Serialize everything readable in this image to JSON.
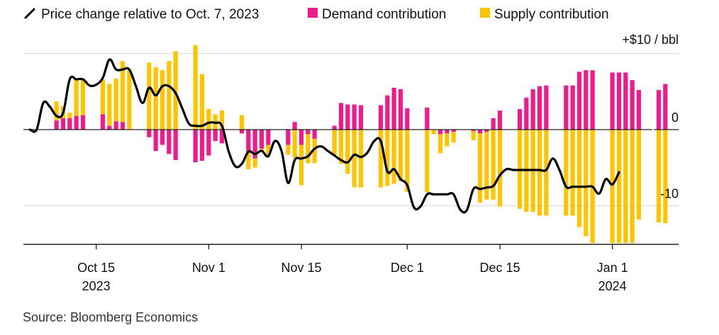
{
  "chart_data": {
    "type": "bar+line",
    "title": "",
    "legend": [
      {
        "key": "line",
        "label": "Price change relative to Oct. 7, 2023",
        "color": "#000000",
        "marker": "line"
      },
      {
        "key": "demand",
        "label": "Demand contribution",
        "color": "#ef1a8c",
        "marker": "square"
      },
      {
        "key": "supply",
        "label": "Supply contribution",
        "color": "#ffc400",
        "marker": "square"
      }
    ],
    "y_unit_label": "+$10 / bbl",
    "y_range": [
      -15,
      10
    ],
    "y_ticks": [
      {
        "value": 10,
        "label": ""
      },
      {
        "value": 0,
        "label": "0"
      },
      {
        "value": -10,
        "label": "-10"
      }
    ],
    "x_ticks": [
      {
        "date": "2023-10-15",
        "label": "Oct 15",
        "sublabel": "2023"
      },
      {
        "date": "2023-11-01",
        "label": "Nov 1",
        "sublabel": ""
      },
      {
        "date": "2023-11-15",
        "label": "Nov 15",
        "sublabel": ""
      },
      {
        "date": "2023-12-01",
        "label": "Dec 1",
        "sublabel": ""
      },
      {
        "date": "2023-12-15",
        "label": "Dec 15",
        "sublabel": ""
      },
      {
        "date": "2024-01-01",
        "label": "Jan 1",
        "sublabel": "2024"
      }
    ],
    "x_range": [
      "2023-10-04",
      "2024-01-11"
    ],
    "source": "Source: Bloomberg Economics",
    "bars": [
      {
        "date": "2023-10-07",
        "demand": 0,
        "supply": 0
      },
      {
        "date": "2023-10-09",
        "demand": 1.2,
        "supply": 2.5
      },
      {
        "date": "2023-10-10",
        "demand": 1.5,
        "supply": 1.6
      },
      {
        "date": "2023-10-11",
        "demand": 1.5,
        "supply": 0.7
      },
      {
        "date": "2023-10-12",
        "demand": 1.8,
        "supply": 4.8
      },
      {
        "date": "2023-10-13",
        "demand": 1.9,
        "supply": 4.8
      },
      {
        "date": "2023-10-16",
        "demand": 2.0,
        "supply": 4.6
      },
      {
        "date": "2023-10-17",
        "demand": 0.5,
        "supply": 5.5
      },
      {
        "date": "2023-10-18",
        "demand": 1.1,
        "supply": 5.6
      },
      {
        "date": "2023-10-19",
        "demand": 1.0,
        "supply": 8.0
      },
      {
        "date": "2023-10-20",
        "demand": 0,
        "supply": 7.8
      },
      {
        "date": "2023-10-23",
        "demand": -1.0,
        "supply": 8.8
      },
      {
        "date": "2023-10-24",
        "demand": -2.8,
        "supply": 8.2
      },
      {
        "date": "2023-10-25",
        "demand": -2.0,
        "supply": 7.8
      },
      {
        "date": "2023-10-26",
        "demand": -3.2,
        "supply": 9.0
      },
      {
        "date": "2023-10-27",
        "demand": -4.0,
        "supply": 10.3
      },
      {
        "date": "2023-10-30",
        "demand": -4.3,
        "supply": 11.1
      },
      {
        "date": "2023-10-31",
        "demand": -4.1,
        "supply": 7.3
      },
      {
        "date": "2023-11-01",
        "demand": -3.4,
        "supply": 2.7
      },
      {
        "date": "2023-11-02",
        "demand": -1.5,
        "supply": 2.0
      },
      {
        "date": "2023-11-03",
        "demand": -1.8,
        "supply": 2.5
      },
      {
        "date": "2023-11-06",
        "demand": -0.5,
        "supply": 1.9
      },
      {
        "date": "2023-11-07",
        "demand": -3.0,
        "supply": -2.2
      },
      {
        "date": "2023-11-08",
        "demand": -3.8,
        "supply": -1.2
      },
      {
        "date": "2023-11-09",
        "demand": -2.5,
        "supply": -0.4
      },
      {
        "date": "2023-11-10",
        "demand": -2.0,
        "supply": -1.6
      },
      {
        "date": "2023-11-13",
        "demand": -2.0,
        "supply": -1.3
      },
      {
        "date": "2023-11-14",
        "demand": 1.0,
        "supply": -3.7
      },
      {
        "date": "2023-11-15",
        "demand": -2.0,
        "supply": -5.3
      },
      {
        "date": "2023-11-16",
        "demand": -0.6,
        "supply": -3.8
      },
      {
        "date": "2023-11-17",
        "demand": -1.2,
        "supply": -3.2
      },
      {
        "date": "2023-11-20",
        "demand": 0.5,
        "supply": -3.3
      },
      {
        "date": "2023-11-21",
        "demand": 3.5,
        "supply": -4.5
      },
      {
        "date": "2023-11-22",
        "demand": 3.3,
        "supply": -5.8
      },
      {
        "date": "2023-11-23",
        "demand": 3.3,
        "supply": -7.6
      },
      {
        "date": "2023-11-24",
        "demand": 3.2,
        "supply": -7.6
      },
      {
        "date": "2023-11-27",
        "demand": 3.2,
        "supply": -7.6
      },
      {
        "date": "2023-11-28",
        "demand": 4.5,
        "supply": -7.4
      },
      {
        "date": "2023-11-29",
        "demand": 5.5,
        "supply": -7.1
      },
      {
        "date": "2023-11-30",
        "demand": 5.3,
        "supply": -6.8
      },
      {
        "date": "2023-12-01",
        "demand": 2.8,
        "supply": -8.2
      },
      {
        "date": "2023-12-04",
        "demand": 2.9,
        "supply": -8.2
      },
      {
        "date": "2023-12-05",
        "demand": 0,
        "supply": -0.6
      },
      {
        "date": "2023-12-06",
        "demand": -0.6,
        "supply": -2.5
      },
      {
        "date": "2023-12-07",
        "demand": -0.5,
        "supply": -1.7
      },
      {
        "date": "2023-12-08",
        "demand": -0.3,
        "supply": -1.4
      },
      {
        "date": "2023-12-11",
        "demand": -0.2,
        "supply": -1.2
      },
      {
        "date": "2023-12-12",
        "demand": -0.5,
        "supply": -9.1
      },
      {
        "date": "2023-12-13",
        "demand": -0.3,
        "supply": -8.9
      },
      {
        "date": "2023-12-14",
        "demand": 1.5,
        "supply": -9.2
      },
      {
        "date": "2023-12-15",
        "demand": 2.5,
        "supply": -10.1
      },
      {
        "date": "2023-12-18",
        "demand": 2.7,
        "supply": -10.4
      },
      {
        "date": "2023-12-19",
        "demand": 4.2,
        "supply": -10.8
      },
      {
        "date": "2023-12-20",
        "demand": 5.3,
        "supply": -10.8
      },
      {
        "date": "2023-12-21",
        "demand": 5.7,
        "supply": -11.3
      },
      {
        "date": "2023-12-22",
        "demand": 5.8,
        "supply": -11.3
      },
      {
        "date": "2023-12-25",
        "demand": 5.8,
        "supply": -11.3
      },
      {
        "date": "2023-12-26",
        "demand": 5.8,
        "supply": -11.3
      },
      {
        "date": "2023-12-27",
        "demand": 7.6,
        "supply": -12.8
      },
      {
        "date": "2023-12-28",
        "demand": 7.8,
        "supply": -14.0
      },
      {
        "date": "2023-12-29",
        "demand": 7.8,
        "supply": -14.9
      },
      {
        "date": "2024-01-01",
        "demand": 7.5,
        "supply": -14.9
      },
      {
        "date": "2024-01-02",
        "demand": 7.5,
        "supply": -14.9
      },
      {
        "date": "2024-01-03",
        "demand": 7.5,
        "supply": -14.9
      },
      {
        "date": "2024-01-04",
        "demand": 6.5,
        "supply": -14.9
      },
      {
        "date": "2024-01-05",
        "demand": 5.2,
        "supply": -11.8
      },
      {
        "date": "2024-01-08",
        "demand": 5.2,
        "supply": -12.2
      },
      {
        "date": "2024-01-09",
        "demand": 6.0,
        "supply": -12.3
      }
    ],
    "line": [
      [
        "2023-10-05",
        0
      ],
      [
        "2023-10-06",
        0
      ],
      [
        "2023-10-07",
        3.5
      ],
      [
        "2023-10-08",
        3.0
      ],
      [
        "2023-10-09",
        1.8
      ],
      [
        "2023-10-10",
        2.2
      ],
      [
        "2023-10-11",
        6.6
      ],
      [
        "2023-10-12",
        6.6
      ],
      [
        "2023-10-13",
        6.6
      ],
      [
        "2023-10-14",
        5.8
      ],
      [
        "2023-10-15",
        5.9
      ],
      [
        "2023-10-16",
        6.8
      ],
      [
        "2023-10-17",
        9.2
      ],
      [
        "2023-10-18",
        7.9
      ],
      [
        "2023-10-19",
        7.9
      ],
      [
        "2023-10-20",
        7.9
      ],
      [
        "2023-10-21",
        5.7
      ],
      [
        "2023-10-22",
        3.5
      ],
      [
        "2023-10-23",
        5.5
      ],
      [
        "2023-10-24",
        4.5
      ],
      [
        "2023-10-25",
        5.7
      ],
      [
        "2023-10-26",
        5.7
      ],
      [
        "2023-10-27",
        4.8
      ],
      [
        "2023-10-28",
        2.8
      ],
      [
        "2023-10-29",
        0.8
      ],
      [
        "2023-10-30",
        0.5
      ],
      [
        "2023-10-31",
        0.5
      ],
      [
        "2023-11-01",
        0.9
      ],
      [
        "2023-11-02",
        0.9
      ],
      [
        "2023-11-03",
        0.5
      ],
      [
        "2023-11-04",
        -2.8
      ],
      [
        "2023-11-05",
        -4.8
      ],
      [
        "2023-11-06",
        -4.5
      ],
      [
        "2023-11-07",
        -2.9
      ],
      [
        "2023-11-08",
        -3.2
      ],
      [
        "2023-11-09",
        -2.8
      ],
      [
        "2023-11-10",
        -3.5
      ],
      [
        "2023-11-11",
        -1.5
      ],
      [
        "2023-11-12",
        -2.8
      ],
      [
        "2023-11-13",
        -7.0
      ],
      [
        "2023-11-14",
        -4.0
      ],
      [
        "2023-11-15",
        -3.8
      ],
      [
        "2023-11-16",
        -3.5
      ],
      [
        "2023-11-17",
        -2.5
      ],
      [
        "2023-11-18",
        -2.2
      ],
      [
        "2023-11-19",
        -2.8
      ],
      [
        "2023-11-20",
        -3.4
      ],
      [
        "2023-11-21",
        -4.0
      ],
      [
        "2023-11-22",
        -4.3
      ],
      [
        "2023-11-23",
        -3.3
      ],
      [
        "2023-11-24",
        -3.6
      ],
      [
        "2023-11-25",
        -3.0
      ],
      [
        "2023-11-26",
        -1.5
      ],
      [
        "2023-11-27",
        -1.5
      ],
      [
        "2023-11-28",
        -5.5
      ],
      [
        "2023-11-29",
        -5.2
      ],
      [
        "2023-11-30",
        -6.5
      ],
      [
        "2023-12-01",
        -7.3
      ],
      [
        "2023-12-02",
        -10.2
      ],
      [
        "2023-12-03",
        -10.1
      ],
      [
        "2023-12-04",
        -8.5
      ],
      [
        "2023-12-05",
        -8.5
      ],
      [
        "2023-12-06",
        -8.5
      ],
      [
        "2023-12-07",
        -8.5
      ],
      [
        "2023-12-08",
        -8.5
      ],
      [
        "2023-12-09",
        -10.5
      ],
      [
        "2023-12-10",
        -10.6
      ],
      [
        "2023-12-11",
        -7.8
      ],
      [
        "2023-12-12",
        -7.8
      ],
      [
        "2023-12-13",
        -7.6
      ],
      [
        "2023-12-14",
        -7.4
      ],
      [
        "2023-12-15",
        -6.0
      ],
      [
        "2023-12-16",
        -5.2
      ],
      [
        "2023-12-17",
        -5.3
      ],
      [
        "2023-12-18",
        -5.3
      ],
      [
        "2023-12-19",
        -5.3
      ],
      [
        "2023-12-20",
        -5.3
      ],
      [
        "2023-12-21",
        -5.3
      ],
      [
        "2023-12-22",
        -5.3
      ],
      [
        "2023-12-23",
        -3.8
      ],
      [
        "2023-12-24",
        -5.3
      ],
      [
        "2023-12-25",
        -7.5
      ],
      [
        "2023-12-26",
        -7.5
      ],
      [
        "2023-12-27",
        -7.5
      ],
      [
        "2023-12-28",
        -7.5
      ],
      [
        "2023-12-29",
        -7.5
      ],
      [
        "2023-12-30",
        -8.4
      ],
      [
        "2023-12-31",
        -6.5
      ],
      [
        "2024-01-01",
        -7.2
      ],
      [
        "2024-01-02",
        -5.6
      ]
    ]
  }
}
